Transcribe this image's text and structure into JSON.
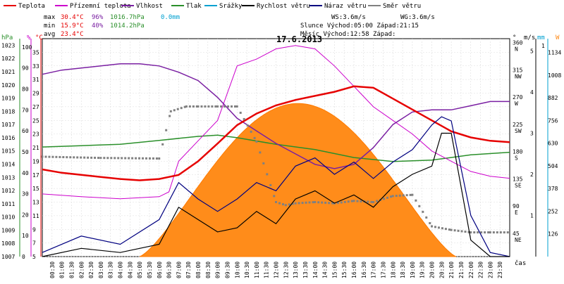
{
  "chart_data": {
    "type": "line",
    "title": "17.6.2013",
    "xlabel": "čas",
    "legend": [
      {
        "name": "Teplota",
        "color": "#e60000"
      },
      {
        "name": "Přízemní teplota",
        "color": "#cc00cc"
      },
      {
        "name": "Vlhkost",
        "color": "#7a1fa2"
      },
      {
        "name": "Tlak",
        "color": "#2a8f2a"
      },
      {
        "name": "Srážky",
        "color": "#00a0d0"
      },
      {
        "name": "Rychlost větru",
        "color": "#000000"
      },
      {
        "name": "Náraz větru",
        "color": "#000080"
      },
      {
        "name": "Směr větru",
        "color": "#808080"
      }
    ],
    "stats": {
      "max_label": "max",
      "max_temp": "30.4°C",
      "max_hum": "96%",
      "max_press": "1016.7hPa",
      "max_rain": "0.0mm",
      "min_label": "min",
      "min_temp": "15.9°C",
      "min_hum": "40%",
      "min_press": "1014.2hPa",
      "avg_label": "avg",
      "avg_temp": "23.4°C"
    },
    "wind_info": {
      "ws": "WS:3.6m/s",
      "wg": "WG:3.6m/s"
    },
    "sun_info": {
      "sun": "Slunce Východ:05:00 Západ:21:15",
      "moon": "Měsíc  Východ:12:58 Západ:"
    },
    "axes": {
      "hpa": {
        "label": "hPa",
        "min": 1007,
        "max": 1023,
        "ticks": [
          "1023",
          "1022",
          "1021",
          "1020",
          "1019",
          "1018",
          "1017",
          "1016",
          "1015",
          "1014",
          "1013",
          "1012",
          "1011",
          "1010",
          "1009",
          "1008",
          "1007"
        ]
      },
      "percent": {
        "label": "%",
        "min": 0,
        "max": 100,
        "ticks": [
          "100",
          "90",
          "80",
          "70",
          "60",
          "50",
          "40",
          "30",
          "20",
          "10",
          "0"
        ]
      },
      "celsius": {
        "label": "°C",
        "min": 5,
        "max": 37,
        "ticks": [
          "35",
          "33",
          "31",
          "29",
          "27",
          "25",
          "23",
          "21",
          "19",
          "17",
          "15",
          "13",
          "11",
          "9",
          "7",
          "5"
        ]
      },
      "direction": {
        "label": "°",
        "ticks": [
          {
            "value": "360",
            "dir": "N"
          },
          {
            "value": "315",
            "dir": "NW"
          },
          {
            "value": "270",
            "dir": "W"
          },
          {
            "value": "225",
            "dir": "SW"
          },
          {
            "value": "180",
            "dir": "S"
          },
          {
            "value": "135",
            "dir": "SE"
          },
          {
            "value": "90",
            "dir": "E"
          },
          {
            "value": "45",
            "dir": "NE"
          }
        ]
      },
      "ms": {
        "label": "m/s",
        "ticks": [
          "5",
          "4",
          "3",
          "2",
          "1"
        ]
      },
      "mm": {
        "label": "mm",
        "ticks": [
          "1"
        ]
      },
      "wm2": {
        "label": "W",
        "ticks": [
          "1134",
          "1008",
          "882",
          "756",
          "630",
          "504",
          "378",
          "252",
          "126"
        ]
      }
    },
    "x_ticks": [
      "00:30",
      "01:00",
      "01:30",
      "02:00",
      "02:30",
      "03:00",
      "03:30",
      "04:00",
      "04:30",
      "05:00",
      "05:30",
      "06:00",
      "06:30",
      "07:00",
      "07:30",
      "08:00",
      "08:30",
      "09:00",
      "09:30",
      "10:00",
      "10:30",
      "11:00",
      "11:30",
      "12:00",
      "12:30",
      "13:00",
      "13:30",
      "14:00",
      "14:30",
      "15:00",
      "15:30",
      "16:00",
      "16:30",
      "17:00",
      "17:30",
      "18:00",
      "18:30",
      "19:00",
      "19:30",
      "20:00",
      "20:30",
      "21:00",
      "21:30",
      "22:00",
      "22:30",
      "23:00",
      "23:30"
    ],
    "series_points": {
      "temperature": {
        "x": [
          0,
          1,
          2,
          3,
          4,
          5,
          6,
          7,
          8,
          9,
          10,
          11,
          12,
          13,
          14,
          15,
          16,
          17,
          18,
          19,
          20,
          21,
          22,
          23,
          24
        ],
        "y": [
          17.8,
          17.3,
          17,
          16.7,
          16.4,
          16.2,
          16.4,
          17,
          19,
          21.6,
          24.3,
          26,
          27.2,
          28,
          28.6,
          29.2,
          30,
          29.8,
          28.2,
          26.6,
          25,
          23.4,
          22.5,
          22,
          21.8
        ]
      },
      "humidity": {
        "x": [
          0,
          1,
          2,
          3,
          4,
          5,
          6,
          7,
          8,
          9,
          10,
          11,
          12,
          13,
          14,
          15,
          16,
          17,
          18,
          19,
          20,
          21,
          22,
          23,
          24
        ],
        "y": [
          87,
          89,
          90,
          91,
          92,
          92,
          91,
          88,
          84,
          76,
          66,
          60,
          54,
          49,
          44,
          42,
          44,
          52,
          63,
          69,
          70,
          70,
          72,
          74,
          74
        ]
      },
      "pressure": {
        "x": [
          0,
          2,
          4,
          6,
          8,
          9,
          10,
          12,
          14,
          16,
          18,
          20,
          22,
          24
        ],
        "y": [
          1015.3,
          1015.4,
          1015.5,
          1015.8,
          1016.1,
          1016.2,
          1016.0,
          1015.5,
          1015.1,
          1014.5,
          1014.2,
          1014.3,
          1014.7,
          1014.9
        ]
      },
      "ground_temperature": {
        "x": [
          0,
          2,
          4,
          6,
          6.5,
          7,
          8,
          9,
          10,
          11,
          12,
          13,
          14,
          15,
          16,
          17,
          18,
          19,
          20,
          21,
          22,
          23,
          24
        ],
        "y": [
          14.2,
          13.8,
          13.5,
          13.8,
          14.5,
          19,
          22,
          25,
          33,
          34,
          35.5,
          36,
          35.5,
          33,
          30,
          27,
          25,
          23,
          20.5,
          19,
          17.5,
          16.8,
          16.5
        ]
      },
      "wind_direction": {
        "x": [
          0,
          3,
          6,
          6.6,
          7.4,
          8,
          9,
          10,
          11,
          12,
          12.5,
          13,
          14,
          15,
          16,
          17,
          18,
          19,
          20,
          21,
          22,
          23,
          24
        ],
        "y": [
          175,
          173,
          172,
          250,
          258,
          258,
          258,
          258,
          200,
          100,
          95,
          98,
          100,
          98,
          102,
          100,
          110,
          112,
          60,
          54,
          50,
          50,
          50
        ]
      },
      "wind_speed": {
        "x": [
          0,
          2,
          4,
          6,
          7,
          8,
          9,
          10,
          11,
          12,
          13,
          14,
          15,
          16,
          17,
          18,
          19,
          20,
          20.5,
          21,
          22,
          23,
          24
        ],
        "y": [
          0,
          0.2,
          0.1,
          0.3,
          1.2,
          0.9,
          0.6,
          0.7,
          1.1,
          0.8,
          1.4,
          1.6,
          1.3,
          1.5,
          1.2,
          1.7,
          2,
          2.2,
          3,
          3,
          0.4,
          0,
          0
        ]
      },
      "wind_gust": {
        "x": [
          0,
          2,
          4,
          6,
          7,
          8,
          9,
          10,
          11,
          12,
          13,
          14,
          15,
          16,
          17,
          18,
          19,
          20,
          20.5,
          21,
          22,
          23,
          24
        ],
        "y": [
          0.1,
          0.5,
          0.3,
          0.9,
          1.8,
          1.4,
          1.1,
          1.4,
          1.8,
          1.6,
          2.2,
          2.4,
          2,
          2.3,
          1.9,
          2.3,
          2.6,
          3.2,
          3.4,
          3.3,
          1,
          0.1,
          0
        ]
      },
      "solar": {
        "sunrise": 5.0,
        "sunset": 21.25,
        "peak_hour": 13.6,
        "peak_value": 850
      }
    }
  }
}
